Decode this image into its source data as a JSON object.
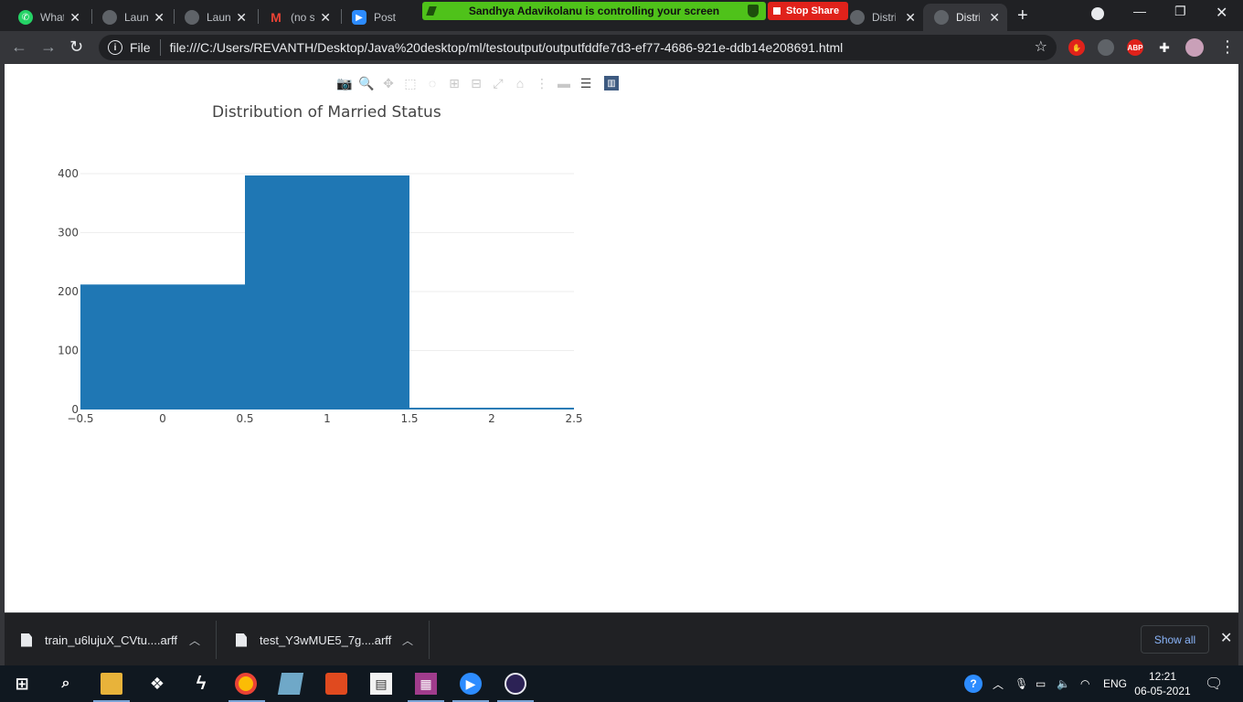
{
  "browser": {
    "tabs": [
      {
        "title": "WhatsApp",
        "icon": "whatsapp-icon",
        "color": "#25d366",
        "active": false
      },
      {
        "title": "Launch Meeting",
        "icon": "globe-icon",
        "color": "#5f6368",
        "active": false
      },
      {
        "title": "Launch Meeting",
        "icon": "globe-icon",
        "color": "#5f6368",
        "active": false
      },
      {
        "title": "(no subject)",
        "icon": "gmail-icon",
        "color": "#ea4335",
        "active": false
      },
      {
        "title": "Post",
        "icon": "zoom-icon",
        "color": "#2d8cff",
        "active": false
      },
      {
        "title": "Distribution",
        "icon": "globe-icon",
        "color": "#5f6368",
        "active": false
      },
      {
        "title": "Distribution",
        "icon": "globe-icon",
        "color": "#5f6368",
        "active": true
      }
    ],
    "share_banner": "Sandhya Adavikolanu is controlling your screen",
    "stop_share": "Stop Share",
    "address": {
      "scheme_label": "File",
      "url": "file:///C:/Users/REVANTH/Desktop/Java%20desktop/ml/testoutput/outputfddfe7d3-ef77-4686-921e-ddb14e208691.html"
    },
    "extensions": [
      {
        "label": "",
        "color": "#e0221b",
        "icon": "hand-stop-icon"
      },
      {
        "label": "",
        "color": "#5f6368",
        "icon": "globe-icon"
      },
      {
        "label": "ABP",
        "color": "#e0221b",
        "icon": "adblock-icon"
      },
      {
        "label": "",
        "color": "#35363a",
        "icon": "puzzle-icon"
      },
      {
        "label": "",
        "color": "#c9a0b8",
        "icon": "profile-avatar-icon"
      }
    ]
  },
  "chart_data": {
    "type": "bar",
    "title": "Distribution of Married Status",
    "xlabel": "",
    "ylabel": "",
    "bins": [
      {
        "x0": -0.5,
        "x1": 0.5,
        "value": 212
      },
      {
        "x0": 0.5,
        "x1": 1.5,
        "value": 397
      },
      {
        "x0": 1.5,
        "x1": 2.5,
        "value": 3
      }
    ],
    "xlim": [
      -0.5,
      2.5
    ],
    "ylim": [
      0,
      400
    ],
    "xticks": [
      "−0.5",
      "0",
      "0.5",
      "1",
      "1.5",
      "2",
      "2.5"
    ],
    "xtick_values": [
      -0.5,
      0,
      0.5,
      1,
      1.5,
      2,
      2.5
    ],
    "yticks": [
      "0",
      "100",
      "200",
      "300",
      "400"
    ],
    "ytick_values": [
      0,
      100,
      200,
      300,
      400
    ],
    "bar_color": "#1f77b4",
    "grid": true
  },
  "downloads": {
    "items": [
      {
        "name": "train_u6lujuX_CVtu....arff"
      },
      {
        "name": "test_Y3wMUE5_7g....arff"
      }
    ],
    "show_all": "Show all"
  },
  "taskbar": {
    "language": "ENG",
    "time": "12:21",
    "date": "06-05-2021"
  }
}
